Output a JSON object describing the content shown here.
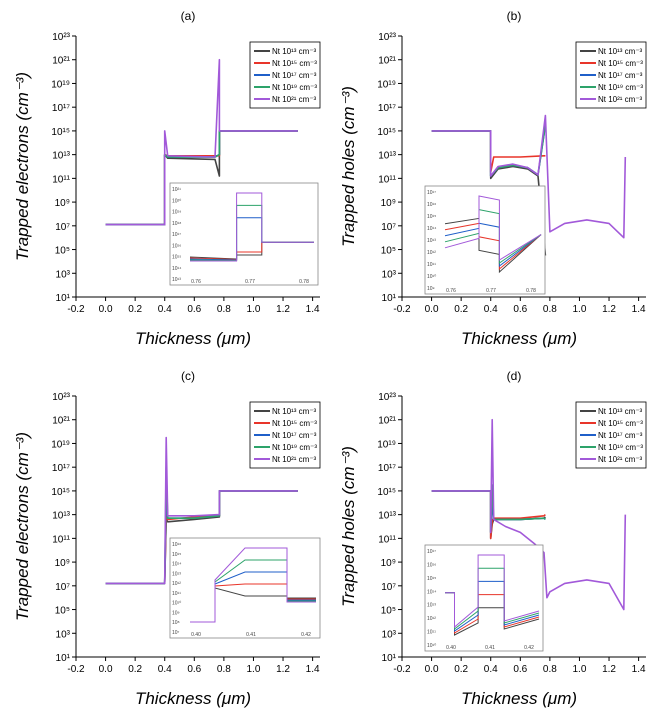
{
  "chart_data": [
    {
      "type": "line",
      "title": "(a)",
      "xlabel": "Thickness (μm)",
      "ylabel": "Trapped electrons (cm⁻³)",
      "xlim": [
        -0.2,
        1.45
      ],
      "ylim_exp": [
        1,
        23
      ],
      "xticks": [
        "-0.2",
        "0.0",
        "0.2",
        "0.4",
        "0.6",
        "0.8",
        "1.0",
        "1.2",
        "1.4"
      ],
      "yticks": [
        "10¹",
        "10³",
        "10⁵",
        "10⁷",
        "10⁹",
        "10¹¹",
        "10¹³",
        "10¹⁵",
        "10¹⁷",
        "10¹⁹",
        "10²¹",
        "10²³"
      ],
      "legend_position": "top-right",
      "series": [
        {
          "name": "Nt 10¹³ cm⁻³",
          "color": "#444444",
          "x": [
            0,
            0.4,
            0.4,
            0.42,
            0.74,
            0.77,
            0.77,
            1.3
          ],
          "y": [
            7.1,
            7.1,
            13.0,
            12.7,
            12.6,
            11.2,
            15,
            15
          ]
        },
        {
          "name": "Nt 10¹⁵ cm⁻³",
          "color": "#e8352a",
          "x": [
            0,
            0.4,
            0.4,
            0.42,
            0.74,
            0.77,
            0.77,
            1.3
          ],
          "y": [
            7.1,
            7.1,
            13.0,
            12.9,
            12.9,
            12.9,
            15,
            15
          ]
        },
        {
          "name": "Nt 10¹⁷ cm⁻³",
          "color": "#1f5fc9",
          "x": [
            0,
            0.4,
            0.4,
            0.42,
            0.74,
            0.77,
            0.77,
            1.3
          ],
          "y": [
            7.1,
            7.1,
            13.0,
            12.8,
            12.8,
            13.0,
            15,
            15
          ]
        },
        {
          "name": "Nt 10¹⁹ cm⁻³",
          "color": "#2da36a",
          "x": [
            0,
            0.4,
            0.4,
            0.42,
            0.74,
            0.77,
            0.77,
            1.3
          ],
          "y": [
            7.1,
            7.1,
            13.0,
            12.8,
            12.8,
            13.0,
            15,
            15
          ]
        },
        {
          "name": "Nt 10²¹ cm⁻³",
          "color": "#a259d9",
          "x": [
            0,
            0.4,
            0.4,
            0.42,
            0.74,
            0.77,
            0.77,
            1.3
          ],
          "y": [
            7.1,
            7.1,
            15.0,
            12.9,
            12.8,
            21.0,
            15,
            15
          ]
        }
      ],
      "inset": {
        "xticks": [
          "0.76",
          "0.77",
          "0.78"
        ],
        "yticks": [
          "10¹³",
          "10¹⁴",
          "10¹⁵",
          "10¹⁶",
          "10¹⁷",
          "10¹⁸",
          "10¹⁹",
          "10²⁰",
          "10²¹"
        ]
      }
    },
    {
      "type": "line",
      "title": "(b)",
      "xlabel": "Thickness (μm)",
      "ylabel": "Trapped holes (cm⁻³)",
      "xlim": [
        -0.2,
        1.45
      ],
      "ylim_exp": [
        1,
        23
      ],
      "xticks": [
        "-0.2",
        "0.0",
        "0.2",
        "0.4",
        "0.6",
        "0.8",
        "1.0",
        "1.2",
        "1.4"
      ],
      "yticks": [
        "10¹",
        "10³",
        "10⁵",
        "10⁷",
        "10⁹",
        "10¹¹",
        "10¹³",
        "10¹⁵",
        "10¹⁷",
        "10¹⁹",
        "10²¹",
        "10²³"
      ],
      "legend_position": "top-right",
      "series": [
        {
          "name": "Nt 10¹³ cm⁻³",
          "color": "#444444",
          "x": [
            0,
            0.4,
            0.4,
            0.45,
            0.55,
            0.65,
            0.72,
            0.77,
            0.77
          ],
          "y": [
            15,
            15,
            11.0,
            11.8,
            12.0,
            11.8,
            11.2,
            4.5,
            4.5
          ]
        },
        {
          "name": "Nt 10¹⁵ cm⁻³",
          "color": "#e8352a",
          "x": [
            0,
            0.4,
            0.4,
            0.42,
            0.6,
            0.76,
            0.77
          ],
          "y": [
            15,
            15,
            11.5,
            12.8,
            12.8,
            12.9,
            12.9
          ]
        },
        {
          "name": "Nt 10¹⁷ cm⁻³",
          "color": "#1f5fc9",
          "x": [
            0,
            0.4,
            0.4,
            0.45,
            0.55,
            0.65,
            0.72,
            0.77
          ],
          "y": [
            15,
            15,
            11.2,
            11.9,
            12.1,
            11.9,
            11.3,
            15.5
          ]
        },
        {
          "name": "Nt 10¹⁹ cm⁻³",
          "color": "#2da36a",
          "x": [
            0,
            0.4,
            0.4,
            0.45,
            0.55,
            0.65,
            0.72,
            0.77
          ],
          "y": [
            15,
            15,
            11.2,
            11.9,
            12.1,
            11.9,
            11.3,
            15.5
          ]
        },
        {
          "name": "Nt 10²¹ cm⁻³",
          "color": "#a259d9",
          "x": [
            0,
            0.4,
            0.4,
            0.45,
            0.55,
            0.65,
            0.72,
            0.77,
            0.8,
            0.9,
            1.05,
            1.2,
            1.3,
            1.31
          ],
          "y": [
            15,
            15,
            11.2,
            12.0,
            12.2,
            11.9,
            11.3,
            16.3,
            6.5,
            7.2,
            7.5,
            7.2,
            6.0,
            12.8
          ]
        }
      ],
      "inset": {
        "xticks": [
          "0.76",
          "0.77",
          "0.78"
        ],
        "yticks": [
          "10⁹",
          "10¹⁰",
          "10¹¹",
          "10¹²",
          "10¹³",
          "10¹⁴",
          "10¹⁵",
          "10¹⁶",
          "10¹⁷"
        ]
      }
    },
    {
      "type": "line",
      "title": "(c)",
      "xlabel": "Thickness (μm)",
      "ylabel": "Trapped electrons (cm⁻³)",
      "xlim": [
        -0.2,
        1.45
      ],
      "ylim_exp": [
        1,
        23
      ],
      "xticks": [
        "-0.2",
        "0.0",
        "0.2",
        "0.4",
        "0.6",
        "0.8",
        "1.0",
        "1.2",
        "1.4"
      ],
      "yticks": [
        "10¹",
        "10³",
        "10⁵",
        "10⁷",
        "10⁹",
        "10¹¹",
        "10¹³",
        "10¹⁵",
        "10¹⁷",
        "10¹⁹",
        "10²¹",
        "10²³"
      ],
      "legend_position": "top-right",
      "series": [
        {
          "name": "Nt 10¹³ cm⁻³",
          "color": "#444444",
          "x": [
            0,
            0.4,
            0.4,
            0.41,
            0.42,
            0.6,
            0.77,
            0.77,
            1.3
          ],
          "y": [
            7.2,
            7.2,
            7.2,
            12.6,
            12.4,
            12.6,
            12.8,
            15,
            15
          ]
        },
        {
          "name": "Nt 10¹⁵ cm⁻³",
          "color": "#e8352a",
          "x": [
            0,
            0.4,
            0.4,
            0.41,
            0.42,
            0.6,
            0.77,
            0.77,
            1.3
          ],
          "y": [
            7.2,
            7.2,
            7.2,
            13.2,
            12.6,
            12.8,
            12.9,
            15,
            15
          ]
        },
        {
          "name": "Nt 10¹⁷ cm⁻³",
          "color": "#1f5fc9",
          "x": [
            0,
            0.4,
            0.4,
            0.41,
            0.42,
            0.6,
            0.77,
            0.77,
            1.3
          ],
          "y": [
            7.2,
            7.2,
            7.2,
            15.0,
            12.7,
            12.7,
            12.9,
            15,
            15
          ]
        },
        {
          "name": "Nt 10¹⁹ cm⁻³",
          "color": "#2da36a",
          "x": [
            0,
            0.4,
            0.4,
            0.41,
            0.42,
            0.6,
            0.77,
            0.77,
            1.3
          ],
          "y": [
            7.2,
            7.2,
            7.2,
            17.0,
            12.7,
            12.7,
            12.9,
            15,
            15
          ]
        },
        {
          "name": "Nt 10²¹ cm⁻³",
          "color": "#a259d9",
          "x": [
            0,
            0.4,
            0.4,
            0.41,
            0.42,
            0.6,
            0.77,
            0.77,
            1.3
          ],
          "y": [
            7.2,
            7.2,
            7.2,
            19.5,
            12.9,
            12.9,
            13.0,
            15,
            15
          ]
        }
      ],
      "inset": {
        "xticks": [
          "0.40",
          "0.41",
          "0.42"
        ],
        "yticks": [
          "10⁷",
          "10⁸",
          "10⁹",
          "10¹⁰",
          "10¹¹",
          "10¹²",
          "10¹³",
          "10¹⁴",
          "10¹⁵",
          "10¹⁶"
        ]
      }
    },
    {
      "type": "line",
      "title": "(d)",
      "xlabel": "Thickness (μm)",
      "ylabel": "Trapped holes (cm⁻³)",
      "xlim": [
        -0.2,
        1.45
      ],
      "ylim_exp": [
        1,
        23
      ],
      "xticks": [
        "-0.2",
        "0.0",
        "0.2",
        "0.4",
        "0.6",
        "0.8",
        "1.0",
        "1.2",
        "1.4"
      ],
      "yticks": [
        "10¹",
        "10³",
        "10⁵",
        "10⁷",
        "10⁹",
        "10¹¹",
        "10¹³",
        "10¹⁵",
        "10¹⁷",
        "10¹⁹",
        "10²¹",
        "10²³"
      ],
      "legend_position": "top-right",
      "series": [
        {
          "name": "Nt 10¹³ cm⁻³",
          "color": "#444444",
          "x": [
            0,
            0.4,
            0.4,
            0.41,
            0.42,
            0.6,
            0.76,
            0.77
          ],
          "y": [
            15,
            15,
            11.0,
            12.2,
            12.6,
            12.6,
            12.7,
            12.8
          ]
        },
        {
          "name": "Nt 10¹⁵ cm⁻³",
          "color": "#e8352a",
          "x": [
            0,
            0.4,
            0.4,
            0.41,
            0.42,
            0.6,
            0.76,
            0.77
          ],
          "y": [
            15,
            15,
            11.0,
            12.5,
            12.7,
            12.7,
            12.9,
            13.0
          ]
        },
        {
          "name": "Nt 10¹⁷ cm⁻³",
          "color": "#1f5fc9",
          "x": [
            0,
            0.4,
            0.4,
            0.41,
            0.42,
            0.6,
            0.76,
            0.77
          ],
          "y": [
            15,
            15,
            11.5,
            14.0,
            12.6,
            12.6,
            12.7,
            12.6
          ]
        },
        {
          "name": "Nt 10¹⁹ cm⁻³",
          "color": "#2da36a",
          "x": [
            0,
            0.4,
            0.4,
            0.41,
            0.42,
            0.6,
            0.76,
            0.77
          ],
          "y": [
            15,
            15,
            11.5,
            15.5,
            12.6,
            12.6,
            12.7,
            12.6
          ]
        },
        {
          "name": "Nt 10²¹ cm⁻³",
          "color": "#a259d9",
          "x": [
            0,
            0.4,
            0.4,
            0.41,
            0.42,
            0.5,
            0.6,
            0.7,
            0.76,
            0.78,
            0.8,
            0.9,
            1.05,
            1.2,
            1.3,
            1.31
          ],
          "y": [
            15,
            15,
            11.5,
            21.0,
            12.6,
            12.0,
            11.5,
            10.5,
            9.8,
            6.0,
            6.5,
            7.2,
            7.5,
            7.2,
            5.0,
            13.0
          ]
        }
      ],
      "inset": {
        "xticks": [
          "0.40",
          "0.41",
          "0.42"
        ],
        "yticks": [
          "10¹⁰",
          "10¹¹",
          "10¹²",
          "10¹³",
          "10¹⁴",
          "10¹⁵",
          "10¹⁶",
          "10¹⁷"
        ]
      }
    }
  ]
}
